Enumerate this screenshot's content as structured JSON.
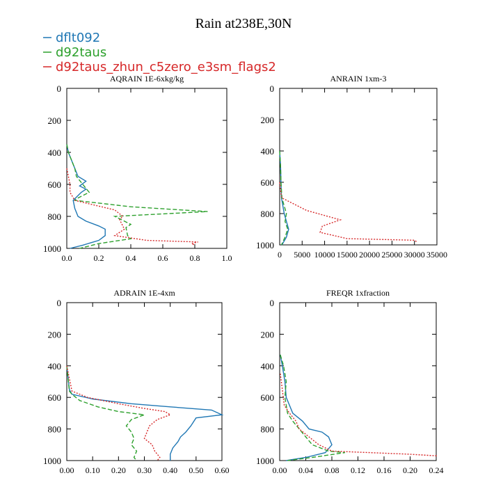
{
  "figure": {
    "title": "Rain at238E,30N"
  },
  "legend": {
    "placement": "top-left",
    "entries": [
      {
        "label": "dflt092",
        "color": "#1f77b4"
      },
      {
        "label": "d92taus",
        "color": "#2ca02c"
      },
      {
        "label": "d92taus_zhun_c5zero_e3sm_flags2",
        "color": "#d62728"
      }
    ]
  },
  "chart_data": [
    {
      "type": "line",
      "title": "AQRAIN  1E-6xkg/kg",
      "xlim": [
        0,
        1.0
      ],
      "ylim": [
        1000,
        0
      ],
      "xticks": [
        0.0,
        0.2,
        0.4,
        0.6,
        0.8,
        1.0
      ],
      "xtick_labels": [
        "0.0",
        "0.2",
        "0.4",
        "0.6",
        "0.8",
        "1.0"
      ],
      "yticks": [
        0,
        200,
        400,
        600,
        800,
        1000
      ],
      "ytick_labels": [
        "0",
        "200",
        "400",
        "600",
        "800",
        "1000"
      ],
      "series": [
        {
          "name": "dflt092",
          "color": "#1f77b4",
          "dash": "solid",
          "points": [
            [
              0,
              350
            ],
            [
              0.01,
              400
            ],
            [
              0.03,
              450
            ],
            [
              0.05,
              500
            ],
            [
              0.07,
              550
            ],
            [
              0.12,
              580
            ],
            [
              0.08,
              610
            ],
            [
              0.12,
              630
            ],
            [
              0.09,
              650
            ],
            [
              0.06,
              680
            ],
            [
              0.04,
              700
            ],
            [
              0.05,
              750
            ],
            [
              0.07,
              800
            ],
            [
              0.12,
              830
            ],
            [
              0.2,
              860
            ],
            [
              0.24,
              880
            ],
            [
              0.24,
              920
            ],
            [
              0.2,
              950
            ],
            [
              0.1,
              980
            ],
            [
              0.02,
              1000
            ]
          ]
        },
        {
          "name": "d92taus",
          "color": "#2ca02c",
          "dash": "6,3",
          "points": [
            [
              0,
              350
            ],
            [
              0.01,
              400
            ],
            [
              0.03,
              450
            ],
            [
              0.05,
              500
            ],
            [
              0.06,
              550
            ],
            [
              0.1,
              600
            ],
            [
              0.14,
              650
            ],
            [
              0.12,
              660
            ],
            [
              0.06,
              690
            ],
            [
              0.05,
              700
            ],
            [
              0.4,
              740
            ],
            [
              0.88,
              770
            ],
            [
              0.3,
              800
            ],
            [
              0.4,
              850
            ],
            [
              0.37,
              870
            ],
            [
              0.38,
              920
            ],
            [
              0.4,
              940
            ],
            [
              0.2,
              970
            ],
            [
              0.08,
              1000
            ]
          ]
        },
        {
          "name": "d92taus_zhun_c5zero_e3sm_flags2",
          "color": "#d62728",
          "dash": "2,2",
          "points": [
            [
              0,
              500
            ],
            [
              0.02,
              600
            ],
            [
              0.02,
              650
            ],
            [
              0.05,
              700
            ],
            [
              0.3,
              760
            ],
            [
              0.35,
              800
            ],
            [
              0.33,
              820
            ],
            [
              0.36,
              880
            ],
            [
              0.3,
              920
            ],
            [
              0.5,
              950
            ],
            [
              0.82,
              960
            ],
            [
              0.78,
              970
            ],
            [
              0.8,
              980
            ]
          ]
        }
      ]
    },
    {
      "type": "line",
      "title": "ANRAIN  1xm-3",
      "xlim": [
        0,
        35000
      ],
      "ylim": [
        1000,
        0
      ],
      "xticks": [
        0,
        5000,
        10000,
        15000,
        20000,
        25000,
        30000,
        35000
      ],
      "xtick_labels": [
        "0",
        "5000",
        "10000",
        "15000",
        "20000",
        "25000",
        "30000",
        "35000"
      ],
      "yticks": [
        0,
        200,
        400,
        600,
        800,
        1000
      ],
      "ytick_labels": [
        "0",
        "200",
        "400",
        "600",
        "800",
        "1000"
      ],
      "series": [
        {
          "name": "dflt092",
          "color": "#1f77b4",
          "dash": "solid",
          "points": [
            [
              0,
              400
            ],
            [
              200,
              500
            ],
            [
              300,
              600
            ],
            [
              400,
              700
            ],
            [
              1000,
              800
            ],
            [
              1500,
              850
            ],
            [
              2000,
              900
            ],
            [
              1500,
              950
            ],
            [
              500,
              1000
            ]
          ]
        },
        {
          "name": "d92taus",
          "color": "#2ca02c",
          "dash": "6,3",
          "points": [
            [
              0,
              400
            ],
            [
              200,
              500
            ],
            [
              300,
              600
            ],
            [
              500,
              700
            ],
            [
              1500,
              800
            ],
            [
              1200,
              850
            ],
            [
              1800,
              900
            ],
            [
              1200,
              950
            ],
            [
              400,
              1000
            ]
          ]
        },
        {
          "name": "d92taus_zhun_c5zero_e3sm_flags2",
          "color": "#d62728",
          "dash": "2,2",
          "points": [
            [
              0,
              600
            ],
            [
              200,
              650
            ],
            [
              500,
              700
            ],
            [
              6000,
              780
            ],
            [
              13500,
              840
            ],
            [
              9500,
              880
            ],
            [
              9000,
              920
            ],
            [
              15000,
              960
            ],
            [
              30000,
              970
            ],
            [
              30500,
              980
            ]
          ]
        }
      ]
    },
    {
      "type": "line",
      "title": "ADRAIN  1E-4xm",
      "xlim": [
        0,
        0.6
      ],
      "ylim": [
        1000,
        0
      ],
      "xticks": [
        0.0,
        0.1,
        0.2,
        0.3,
        0.4,
        0.5,
        0.6
      ],
      "xtick_labels": [
        "0.00",
        "0.10",
        "0.20",
        "0.30",
        "0.40",
        "0.50",
        "0.60"
      ],
      "yticks": [
        0,
        200,
        400,
        600,
        800,
        1000
      ],
      "ytick_labels": [
        "0",
        "200",
        "400",
        "600",
        "800",
        "1000"
      ],
      "series": [
        {
          "name": "dflt092",
          "color": "#1f77b4",
          "dash": "solid",
          "points": [
            [
              0,
              400
            ],
            [
              0.01,
              550
            ],
            [
              0.02,
              580
            ],
            [
              0.1,
              610
            ],
            [
              0.25,
              640
            ],
            [
              0.4,
              660
            ],
            [
              0.56,
              680
            ],
            [
              0.6,
              710
            ],
            [
              0.5,
              730
            ],
            [
              0.48,
              780
            ],
            [
              0.46,
              820
            ],
            [
              0.44,
              850
            ],
            [
              0.43,
              880
            ],
            [
              0.41,
              920
            ],
            [
              0.4,
              960
            ],
            [
              0.4,
              1000
            ]
          ]
        },
        {
          "name": "d92taus",
          "color": "#2ca02c",
          "dash": "6,3",
          "points": [
            [
              0,
              400
            ],
            [
              0.01,
              560
            ],
            [
              0.02,
              580
            ],
            [
              0.05,
              620
            ],
            [
              0.12,
              660
            ],
            [
              0.2,
              690
            ],
            [
              0.3,
              710
            ],
            [
              0.25,
              740
            ],
            [
              0.23,
              780
            ],
            [
              0.25,
              820
            ],
            [
              0.26,
              860
            ],
            [
              0.25,
              900
            ],
            [
              0.27,
              940
            ],
            [
              0.26,
              980
            ],
            [
              0.27,
              1000
            ]
          ]
        },
        {
          "name": "d92taus_zhun_c5zero_e3sm_flags2",
          "color": "#d62728",
          "dash": "2,2",
          "points": [
            [
              0,
              400
            ],
            [
              0.02,
              560
            ],
            [
              0.08,
              600
            ],
            [
              0.2,
              640
            ],
            [
              0.3,
              670
            ],
            [
              0.38,
              690
            ],
            [
              0.4,
              710
            ],
            [
              0.35,
              740
            ],
            [
              0.32,
              780
            ],
            [
              0.31,
              820
            ],
            [
              0.3,
              860
            ],
            [
              0.33,
              900
            ],
            [
              0.34,
              940
            ],
            [
              0.36,
              980
            ],
            [
              0.35,
              1000
            ]
          ]
        }
      ]
    },
    {
      "type": "line",
      "title": "FREQR  1xfraction",
      "xlim": [
        0,
        0.24
      ],
      "ylim": [
        1000,
        0
      ],
      "xticks": [
        0.0,
        0.04,
        0.08,
        0.12,
        0.16,
        0.2,
        0.24
      ],
      "xtick_labels": [
        "0.00",
        "0.04",
        "0.08",
        "0.12",
        "0.16",
        "0.20",
        "0.24"
      ],
      "yticks": [
        0,
        200,
        400,
        600,
        800,
        1000
      ],
      "ytick_labels": [
        "0",
        "200",
        "400",
        "600",
        "800",
        "1000"
      ],
      "series": [
        {
          "name": "dflt092",
          "color": "#1f77b4",
          "dash": "solid",
          "points": [
            [
              0.001,
              330
            ],
            [
              0.004,
              400
            ],
            [
              0.008,
              500
            ],
            [
              0.01,
              600
            ],
            [
              0.015,
              650
            ],
            [
              0.02,
              700
            ],
            [
              0.035,
              750
            ],
            [
              0.045,
              800
            ],
            [
              0.065,
              820
            ],
            [
              0.075,
              850
            ],
            [
              0.08,
              900
            ],
            [
              0.07,
              950
            ],
            [
              0.04,
              980
            ],
            [
              0.01,
              1000
            ]
          ]
        },
        {
          "name": "d92taus",
          "color": "#2ca02c",
          "dash": "6,3",
          "points": [
            [
              0.001,
              330
            ],
            [
              0.006,
              400
            ],
            [
              0.01,
              500
            ],
            [
              0.008,
              600
            ],
            [
              0.01,
              650
            ],
            [
              0.012,
              700
            ],
            [
              0.02,
              750
            ],
            [
              0.03,
              800
            ],
            [
              0.04,
              850
            ],
            [
              0.05,
              900
            ],
            [
              0.075,
              940
            ],
            [
              0.1,
              950
            ],
            [
              0.05,
              980
            ],
            [
              0.012,
              1000
            ]
          ]
        },
        {
          "name": "d92taus_zhun_c5zero_e3sm_flags2",
          "color": "#d62728",
          "dash": "2,2",
          "points": [
            [
              0.001,
              450
            ],
            [
              0.004,
              550
            ],
            [
              0.007,
              650
            ],
            [
              0.015,
              700
            ],
            [
              0.025,
              750
            ],
            [
              0.03,
              800
            ],
            [
              0.045,
              850
            ],
            [
              0.06,
              900
            ],
            [
              0.08,
              940
            ],
            [
              0.2,
              960
            ],
            [
              0.24,
              970
            ],
            [
              0.24,
              980
            ]
          ]
        }
      ]
    }
  ]
}
